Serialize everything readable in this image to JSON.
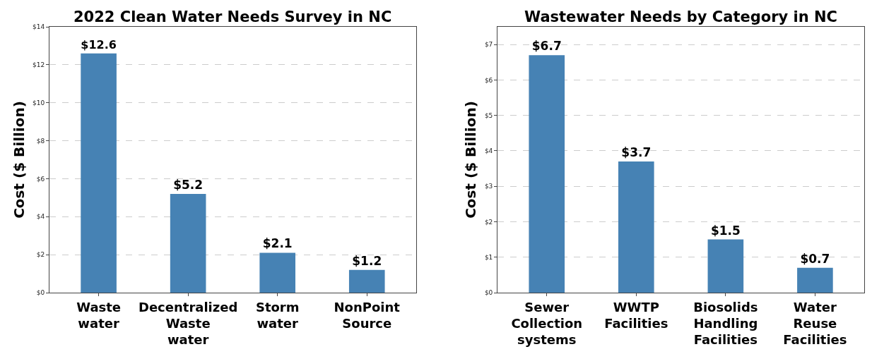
{
  "chart_data": [
    {
      "type": "bar",
      "title": "2022 Clean Water Needs Survey in NC",
      "ylabel": "Cost ($ Billion)",
      "categories": [
        "Waste\nwater",
        "Decentralized\nWaste\nwater",
        "Storm\nwater",
        "NonPoint\nSource"
      ],
      "values": [
        12.6,
        5.2,
        2.1,
        1.2
      ],
      "value_labels": [
        "$12.6",
        "$5.2",
        "$2.1",
        "$1.2"
      ],
      "color": "#4682b4",
      "ylim": [
        0,
        14
      ],
      "yticks": [
        {
          "value": 0,
          "label": "$0"
        },
        {
          "value": 2,
          "label": "$2"
        },
        {
          "value": 4,
          "label": "$4"
        },
        {
          "value": 6,
          "label": "$6"
        },
        {
          "value": 8,
          "label": "$8"
        },
        {
          "value": 10,
          "label": "$10"
        },
        {
          "value": 12,
          "label": "$12"
        },
        {
          "value": 14,
          "label": "$14"
        }
      ],
      "grid": "y"
    },
    {
      "type": "bar",
      "title": "Wastewater Needs by Category in NC",
      "ylabel": "Cost ($ Billion)",
      "categories": [
        "Sewer\nCollection\nsystems",
        "WWTP\nFacilities",
        "Biosolids\nHandling\nFacilities",
        "Water\nReuse\nFacilities"
      ],
      "values": [
        6.7,
        3.7,
        1.5,
        0.7
      ],
      "value_labels": [
        "$6.7",
        "$3.7",
        "$1.5",
        "$0.7"
      ],
      "color": "#4682b4",
      "ylim": [
        0,
        7.5
      ],
      "yticks": [
        {
          "value": 0,
          "label": "$0"
        },
        {
          "value": 1,
          "label": "$1"
        },
        {
          "value": 2,
          "label": "$2"
        },
        {
          "value": 3,
          "label": "$3"
        },
        {
          "value": 4,
          "label": "$4"
        },
        {
          "value": 5,
          "label": "$5"
        },
        {
          "value": 6,
          "label": "$6"
        },
        {
          "value": 7,
          "label": "$7"
        }
      ],
      "grid": "y"
    }
  ]
}
